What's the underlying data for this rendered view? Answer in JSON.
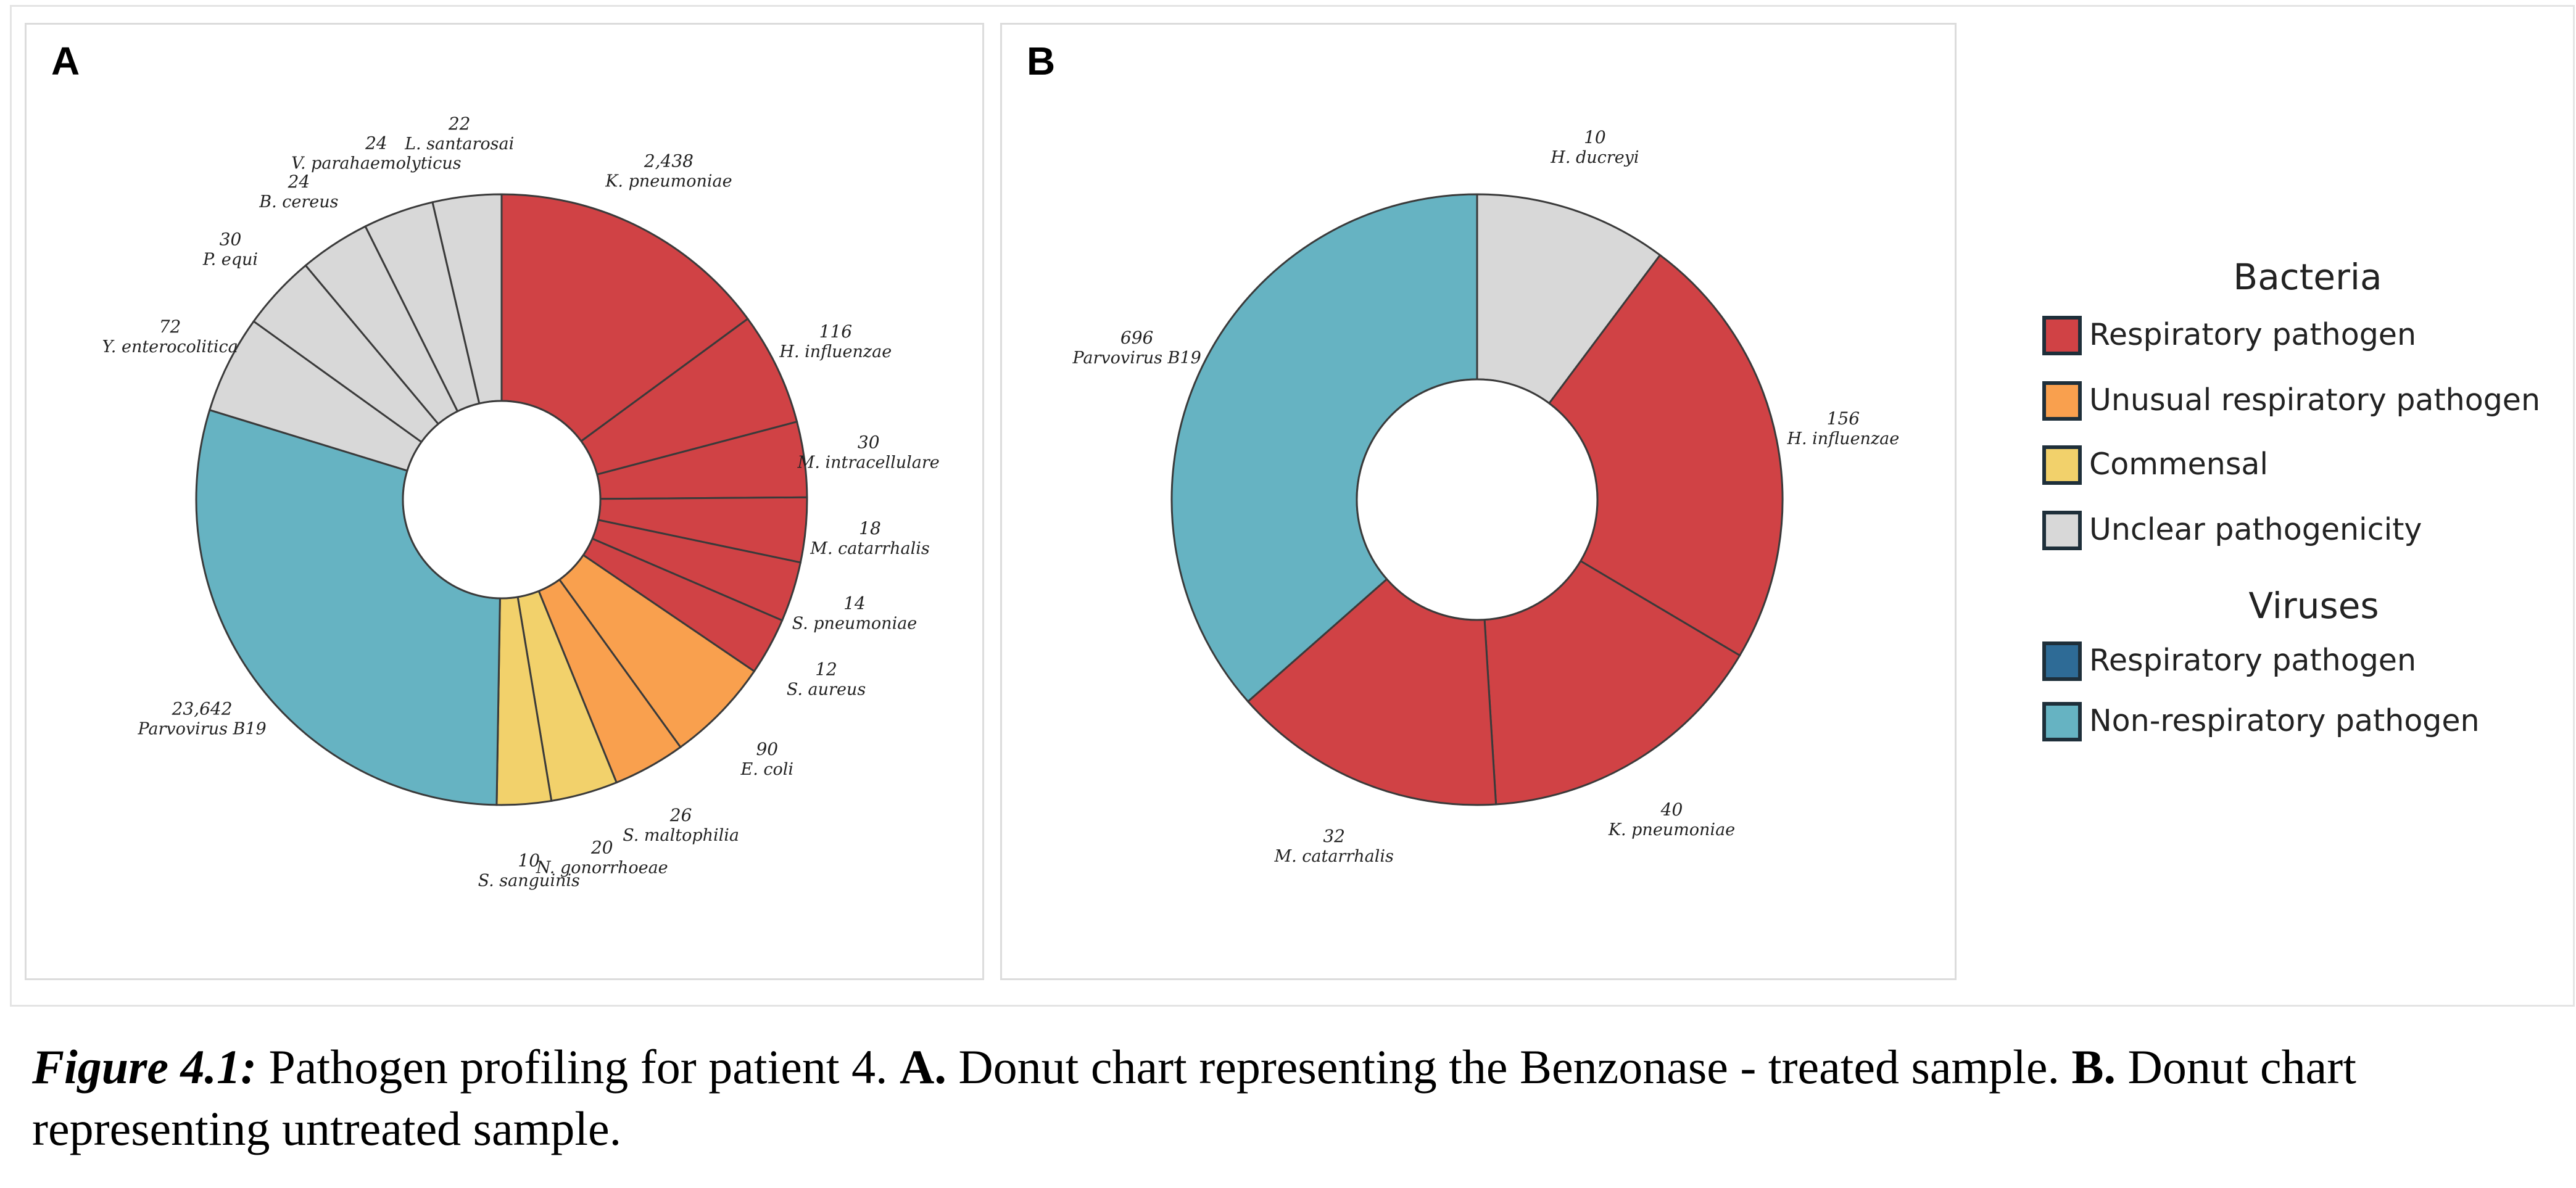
{
  "panels": [
    {
      "letter": "A"
    },
    {
      "letter": "B"
    }
  ],
  "legend": {
    "bacteria_heading": "Bacteria",
    "viruses_heading": "Viruses",
    "bacteria_items": [
      {
        "label": "Respiratory pathogen",
        "color": "#d04245"
      },
      {
        "label": "Unusual respiratory pathogen",
        "color": "#f9a04e"
      },
      {
        "label": "Commensal",
        "color": "#f2d16b"
      },
      {
        "label": "Unclear pathogenicity",
        "color": "#d8d8d8"
      }
    ],
    "virus_items": [
      {
        "label": "Respiratory pathogen",
        "color": "#2e6b96"
      },
      {
        "label": "Non-respiratory pathogen",
        "color": "#66b3c2"
      }
    ]
  },
  "caption": {
    "fig_label": "Figure 4.1:",
    "text1": " Pathogen profiling for patient 4. ",
    "a_label": "A.",
    "text2": " Donut chart representing the Benzonase - treated sample. ",
    "b_label": "B.",
    "text3": " Donut chart representing untreated sample."
  },
  "chart_data": [
    {
      "type": "pie",
      "variant": "donut",
      "panel": "A",
      "note": "Segment sizes are drawn on a compressed (non-linear) scale; values are read counts.",
      "slices": [
        {
          "label": "K. pneumoniae",
          "value_label": "2,438",
          "value": 2438,
          "category": "Respiratory pathogen",
          "color": "#d04245"
        },
        {
          "label": "H. influenzae",
          "value_label": "116",
          "value": 116,
          "category": "Respiratory pathogen",
          "color": "#d04245"
        },
        {
          "label": "M. intracellulare",
          "value_label": "30",
          "value": 30,
          "category": "Respiratory pathogen",
          "color": "#d04245"
        },
        {
          "label": "M. catarrhalis",
          "value_label": "18",
          "value": 18,
          "category": "Respiratory pathogen",
          "color": "#d04245"
        },
        {
          "label": "S. pneumoniae",
          "value_label": "14",
          "value": 14,
          "category": "Respiratory pathogen",
          "color": "#d04245"
        },
        {
          "label": "S. aureus",
          "value_label": "12",
          "value": 12,
          "category": "Respiratory pathogen",
          "color": "#d04245"
        },
        {
          "label": "E. coli",
          "value_label": "90",
          "value": 90,
          "category": "Unusual respiratory pathogen",
          "color": "#f9a04e"
        },
        {
          "label": "S. maltophilia",
          "value_label": "26",
          "value": 26,
          "category": "Unusual respiratory pathogen",
          "color": "#f9a04e"
        },
        {
          "label": "N. gonorrhoeae",
          "value_label": "20",
          "value": 20,
          "category": "Commensal",
          "color": "#f2d16b"
        },
        {
          "label": "S. sanguinis",
          "value_label": "10",
          "value": 10,
          "category": "Commensal",
          "color": "#f2d16b"
        },
        {
          "label": "Parvovirus B19",
          "value_label": "23,642",
          "value": 23642,
          "category": "Non-respiratory pathogen",
          "color": "#66b3c2"
        },
        {
          "label": "Y. enterocolitica",
          "value_label": "72",
          "value": 72,
          "category": "Unclear pathogenicity",
          "color": "#d8d8d8"
        },
        {
          "label": "P. equi",
          "value_label": "30",
          "value": 30,
          "category": "Unclear pathogenicity",
          "color": "#d8d8d8"
        },
        {
          "label": "B. cereus",
          "value_label": "24",
          "value": 24,
          "category": "Unclear pathogenicity",
          "color": "#d8d8d8"
        },
        {
          "label": "V. parahaemolyticus",
          "value_label": "24",
          "value": 24,
          "category": "Unclear pathogenicity",
          "color": "#d8d8d8"
        },
        {
          "label": "L. santarosai",
          "value_label": "22",
          "value": 22,
          "category": "Unclear pathogenicity",
          "color": "#d8d8d8"
        }
      ]
    },
    {
      "type": "pie",
      "variant": "donut",
      "panel": "B",
      "note": "Segment sizes are drawn on a compressed (non-linear) scale; values are read counts.",
      "slices": [
        {
          "label": "H. ducreyi",
          "value_label": "10",
          "value": 10,
          "category": "Unclear pathogenicity",
          "color": "#d8d8d8"
        },
        {
          "label": "H. influenzae",
          "value_label": "156",
          "value": 156,
          "category": "Respiratory pathogen",
          "color": "#d04245"
        },
        {
          "label": "K. pneumoniae",
          "value_label": "40",
          "value": 40,
          "category": "Respiratory pathogen",
          "color": "#d04245"
        },
        {
          "label": "M. catarrhalis",
          "value_label": "32",
          "value": 32,
          "category": "Respiratory pathogen",
          "color": "#d04245"
        },
        {
          "label": "Parvovirus B19",
          "value_label": "696",
          "value": 696,
          "category": "Non-respiratory pathogen",
          "color": "#66b3c2"
        }
      ]
    }
  ]
}
